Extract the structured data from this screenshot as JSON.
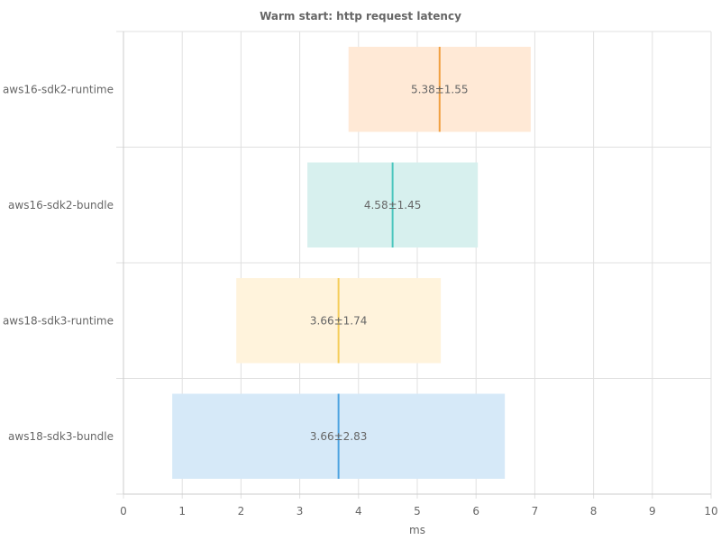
{
  "chart_data": {
    "type": "bar",
    "subtype": "mean-range",
    "title": "Warm start: http request latency",
    "xlabel": "ms",
    "ylabel": "",
    "xlim": [
      0,
      10
    ],
    "xticks": [
      "0",
      "1",
      "2",
      "3",
      "4",
      "5",
      "6",
      "7",
      "8",
      "9",
      "10"
    ],
    "grid": true,
    "categories": [
      "aws16-sdk2-runtime",
      "aws16-sdk2-bundle",
      "aws18-sdk3-runtime",
      "aws18-sdk3-bundle"
    ],
    "series": [
      {
        "category": "aws16-sdk2-runtime",
        "mean": 5.38,
        "std": 1.55,
        "label": "5.38±1.55",
        "fill": "#ffe9d6",
        "line": "#f0a040"
      },
      {
        "category": "aws16-sdk2-bundle",
        "mean": 4.58,
        "std": 1.45,
        "label": "4.58±1.45",
        "fill": "#d7f0ee",
        "line": "#4cc6be"
      },
      {
        "category": "aws18-sdk3-runtime",
        "mean": 3.66,
        "std": 1.74,
        "label": "3.66±1.74",
        "fill": "#fff3dc",
        "line": "#f5cd5a"
      },
      {
        "category": "aws18-sdk3-bundle",
        "mean": 3.66,
        "std": 2.83,
        "label": "3.66±2.83",
        "fill": "#d6e9f8",
        "line": "#4ea3e0"
      }
    ]
  }
}
